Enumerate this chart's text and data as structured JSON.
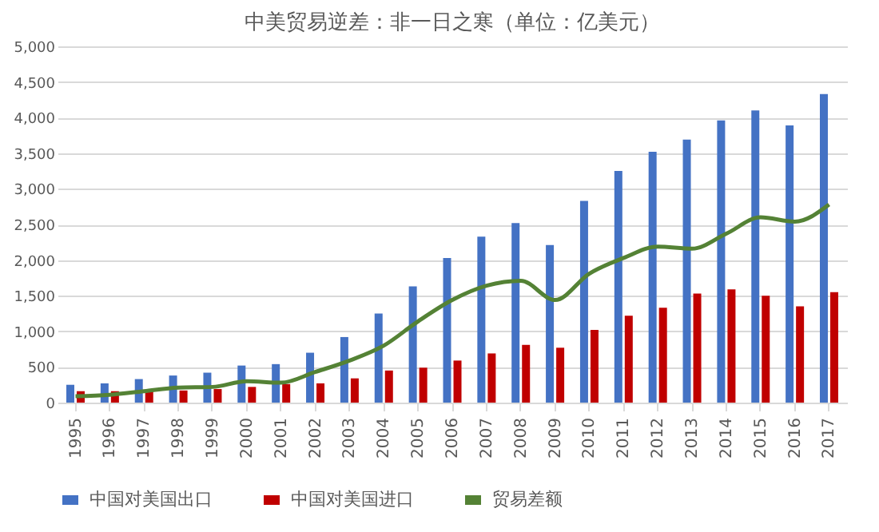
{
  "chart_data": {
    "type": "bar",
    "title": "中美贸易逆差：非一日之寒（单位：亿美元）",
    "categories": [
      "1995",
      "1996",
      "1997",
      "1998",
      "1999",
      "2000",
      "2001",
      "2002",
      "2003",
      "2004",
      "2005",
      "2006",
      "2007",
      "2008",
      "2009",
      "2010",
      "2011",
      "2012",
      "2013",
      "2014",
      "2015",
      "2016",
      "2017"
    ],
    "series": [
      {
        "name": "中国对美国出口",
        "color": "#4472c4",
        "values": [
          250,
          270,
          330,
          380,
          420,
          520,
          540,
          700,
          920,
          1250,
          1630,
          2030,
          2330,
          2520,
          2210,
          2830,
          3250,
          3520,
          3690,
          3960,
          4100,
          3890,
          4330
        ]
      },
      {
        "name": "中国对美国进口",
        "color": "#c00000",
        "values": [
          160,
          160,
          160,
          170,
          190,
          220,
          260,
          270,
          340,
          450,
          490,
          590,
          690,
          810,
          770,
          1020,
          1220,
          1330,
          1530,
          1590,
          1500,
          1350,
          1550
        ]
      },
      {
        "name": "贸易差额",
        "type": "line",
        "color": "#548235",
        "values": [
          90,
          110,
          160,
          210,
          220,
          300,
          280,
          430,
          590,
          800,
          1140,
          1440,
          1640,
          1710,
          1440,
          1810,
          2030,
          2190,
          2160,
          2370,
          2600,
          2540,
          2780
        ]
      }
    ],
    "ylim": [
      0,
      5000
    ],
    "yticks": [
      {
        "value": 0,
        "label": "0"
      },
      {
        "value": 500,
        "label": "500"
      },
      {
        "value": 1000,
        "label": "1,000"
      },
      {
        "value": 1500,
        "label": "1,500"
      },
      {
        "value": 2000,
        "label": "2,000"
      },
      {
        "value": 2500,
        "label": "2,500"
      },
      {
        "value": 3000,
        "label": "3,000"
      },
      {
        "value": 3500,
        "label": "3,500"
      },
      {
        "value": 4000,
        "label": "4,000"
      },
      {
        "value": 4500,
        "label": "4,500"
      },
      {
        "value": 5000,
        "label": "5,000"
      }
    ],
    "grid": "y",
    "legend": "bottom"
  }
}
